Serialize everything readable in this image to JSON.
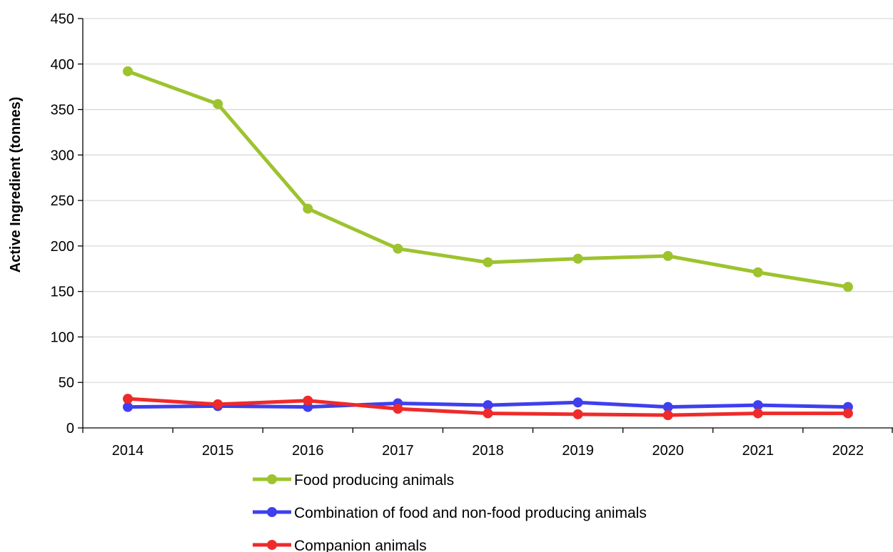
{
  "chart_data": {
    "type": "line",
    "title": "",
    "xlabel": "",
    "ylabel": "Active Ingredient (tonnes)",
    "categories": [
      "2014",
      "2015",
      "2016",
      "2017",
      "2018",
      "2019",
      "2020",
      "2021",
      "2022"
    ],
    "ylim": [
      0,
      450
    ],
    "yticks": [
      0,
      50,
      100,
      150,
      200,
      250,
      300,
      350,
      400,
      450
    ],
    "grid": true,
    "legend_position": "bottom",
    "series": [
      {
        "name": "Food producing animals",
        "color": "#9dc32e",
        "values": [
          392,
          356,
          241,
          197,
          182,
          186,
          189,
          171,
          155
        ]
      },
      {
        "name": "Combination of food and non-food producing animals",
        "color": "#3f3fef",
        "values": [
          23,
          24,
          23,
          27,
          25,
          28,
          23,
          25,
          23
        ]
      },
      {
        "name": "Companion animals",
        "color": "#ef2a2a",
        "values": [
          32,
          26,
          30,
          21,
          16,
          15,
          14,
          16,
          16
        ]
      }
    ]
  }
}
